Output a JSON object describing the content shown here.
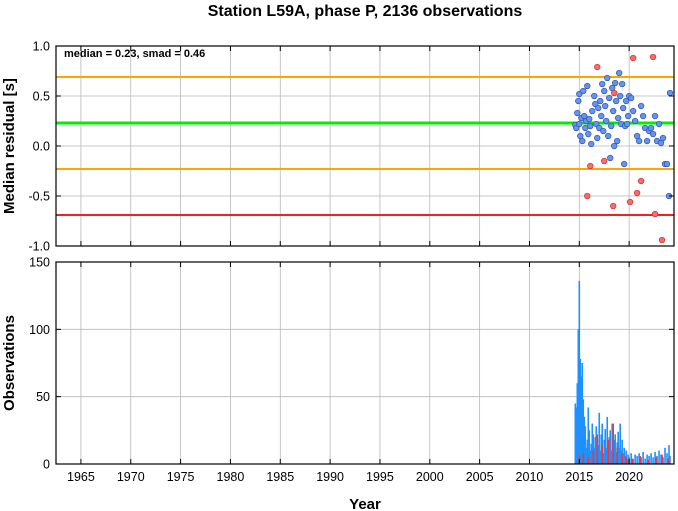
{
  "chart_data": [
    {
      "type": "scatter",
      "title": "Station L59A, phase P, 2136 observations",
      "annotation": "median = 0.23, smad = 0.46",
      "xlabel": "",
      "ylabel": "Median residual [s]",
      "xlim": [
        1962.5,
        2024.5
      ],
      "ylim": [
        -1.0,
        1.0
      ],
      "yticks": [
        "-1.0",
        "-0.5",
        "0.0",
        "0.5",
        "1.0"
      ],
      "grid": true,
      "hlines": [
        {
          "value": 0.69,
          "color": "#ffa500"
        },
        {
          "value": 0.23,
          "color": "#00ee00"
        },
        {
          "value": -0.23,
          "color": "#ffa500"
        },
        {
          "value": -0.69,
          "color": "#ee2222"
        }
      ],
      "series": [
        {
          "color": "#6495ed",
          "points": [
            [
              2014.6,
              0.21
            ],
            [
              2014.7,
              0.18
            ],
            [
              2014.8,
              0.33
            ],
            [
              2014.9,
              0.45
            ],
            [
              2015.0,
              0.52
            ],
            [
              2015.0,
              0.22
            ],
            [
              2015.1,
              0.1
            ],
            [
              2015.2,
              0.28
            ],
            [
              2015.3,
              0.05
            ],
            [
              2015.4,
              0.55
            ],
            [
              2015.5,
              0.3
            ],
            [
              2015.6,
              0.18
            ],
            [
              2015.7,
              0.25
            ],
            [
              2015.8,
              0.6
            ],
            [
              2015.9,
              0.12
            ],
            [
              2016.0,
              0.27
            ],
            [
              2016.1,
              0.2
            ],
            [
              2016.2,
              0.02
            ],
            [
              2016.3,
              0.35
            ],
            [
              2016.5,
              0.5
            ],
            [
              2016.6,
              0.42
            ],
            [
              2016.7,
              0.22
            ],
            [
              2016.8,
              0.08
            ],
            [
              2016.9,
              0.38
            ],
            [
              2017.0,
              0.18
            ],
            [
              2017.1,
              0.45
            ],
            [
              2017.2,
              0.3
            ],
            [
              2017.3,
              0.62
            ],
            [
              2017.4,
              0.15
            ],
            [
              2017.5,
              0.55
            ],
            [
              2017.6,
              0.4
            ],
            [
              2017.7,
              0.25
            ],
            [
              2017.8,
              0.68
            ],
            [
              2017.9,
              0.1
            ],
            [
              2018.0,
              0.48
            ],
            [
              2018.1,
              -0.12
            ],
            [
              2018.2,
              0.2
            ],
            [
              2018.3,
              0.58
            ],
            [
              2018.4,
              0.35
            ],
            [
              2018.5,
              0.0
            ],
            [
              2018.6,
              0.63
            ],
            [
              2018.7,
              0.45
            ],
            [
              2018.8,
              0.05
            ],
            [
              2018.9,
              0.28
            ],
            [
              2019.0,
              0.73
            ],
            [
              2019.1,
              0.5
            ],
            [
              2019.2,
              0.22
            ],
            [
              2019.3,
              0.62
            ],
            [
              2019.4,
              0.38
            ],
            [
              2019.5,
              -0.18
            ],
            [
              2019.6,
              0.2
            ],
            [
              2019.7,
              0.45
            ],
            [
              2019.8,
              0.22
            ],
            [
              2019.9,
              0.3
            ],
            [
              2020.0,
              0.5
            ],
            [
              2020.2,
              0.48
            ],
            [
              2020.4,
              0.35
            ],
            [
              2020.6,
              0.25
            ],
            [
              2020.8,
              0.1
            ],
            [
              2021.0,
              0.05
            ],
            [
              2021.2,
              0.4
            ],
            [
              2021.4,
              0.3
            ],
            [
              2021.6,
              0.18
            ],
            [
              2021.8,
              0.05
            ],
            [
              2022.0,
              0.15
            ],
            [
              2022.2,
              0.18
            ],
            [
              2022.4,
              0.12
            ],
            [
              2022.6,
              0.3
            ],
            [
              2022.8,
              0.05
            ],
            [
              2023.0,
              0.22
            ],
            [
              2023.2,
              0.03
            ],
            [
              2023.4,
              0.08
            ],
            [
              2023.6,
              -0.18
            ],
            [
              2023.8,
              -0.18
            ],
            [
              2024.0,
              -0.5
            ],
            [
              2024.1,
              0.53
            ]
          ]
        },
        {
          "color": "#ff6a6a",
          "points": [
            [
              2015.8,
              -0.5
            ],
            [
              2016.1,
              -0.2
            ],
            [
              2016.8,
              0.79
            ],
            [
              2017.5,
              -0.15
            ],
            [
              2018.4,
              -0.6
            ],
            [
              2018.5,
              0.53
            ],
            [
              2020.1,
              -0.56
            ],
            [
              2020.4,
              0.88
            ],
            [
              2020.8,
              -0.47
            ],
            [
              2021.2,
              -0.35
            ],
            [
              2022.4,
              0.89
            ],
            [
              2022.6,
              -0.68
            ],
            [
              2023.3,
              -0.94
            ]
          ]
        }
      ]
    },
    {
      "type": "bar",
      "title": "",
      "xlabel": "Year",
      "ylabel": "Observations",
      "xlim": [
        1962.5,
        2024.5
      ],
      "ylim": [
        0,
        150
      ],
      "xticks": [
        "1965",
        "1970",
        "1975",
        "1980",
        "1985",
        "1990",
        "1995",
        "2000",
        "2005",
        "2010",
        "2015",
        "2020"
      ],
      "yticks": [
        "0",
        "50",
        "100",
        "150"
      ],
      "grid": true,
      "series": [
        {
          "color": "#1e90ff",
          "bars": [
            [
              2014.6,
              45
            ],
            [
              2014.65,
              10
            ],
            [
              2014.7,
              30
            ],
            [
              2014.75,
              42
            ],
            [
              2014.8,
              60
            ],
            [
              2014.85,
              20
            ],
            [
              2014.9,
              100
            ],
            [
              2014.95,
              50
            ],
            [
              2015.0,
              136
            ],
            [
              2015.05,
              70
            ],
            [
              2015.1,
              78
            ],
            [
              2015.15,
              65
            ],
            [
              2015.2,
              55
            ],
            [
              2015.25,
              40
            ],
            [
              2015.3,
              75
            ],
            [
              2015.35,
              30
            ],
            [
              2015.4,
              48
            ],
            [
              2015.45,
              20
            ],
            [
              2015.5,
              35
            ],
            [
              2015.55,
              15
            ],
            [
              2015.6,
              28
            ],
            [
              2015.7,
              12
            ],
            [
              2015.8,
              18
            ],
            [
              2015.9,
              42
            ],
            [
              2016.0,
              25
            ],
            [
              2016.1,
              10
            ],
            [
              2016.2,
              15
            ],
            [
              2016.3,
              30
            ],
            [
              2016.4,
              22
            ],
            [
              2016.5,
              12
            ],
            [
              2016.6,
              20
            ],
            [
              2016.7,
              28
            ],
            [
              2016.8,
              18
            ],
            [
              2016.9,
              14
            ],
            [
              2017.0,
              38
            ],
            [
              2017.1,
              10
            ],
            [
              2017.2,
              22
            ],
            [
              2017.3,
              30
            ],
            [
              2017.4,
              8
            ],
            [
              2017.5,
              18
            ],
            [
              2017.6,
              26
            ],
            [
              2017.7,
              12
            ],
            [
              2017.8,
              35
            ],
            [
              2017.9,
              15
            ],
            [
              2018.0,
              20
            ],
            [
              2018.1,
              25
            ],
            [
              2018.2,
              10
            ],
            [
              2018.3,
              30
            ],
            [
              2018.4,
              14
            ],
            [
              2018.5,
              18
            ],
            [
              2018.6,
              22
            ],
            [
              2018.7,
              9
            ],
            [
              2018.8,
              16
            ],
            [
              2018.9,
              24
            ],
            [
              2019.0,
              12
            ],
            [
              2019.1,
              30
            ],
            [
              2019.2,
              10
            ],
            [
              2019.3,
              18
            ],
            [
              2019.4,
              8
            ],
            [
              2019.5,
              12
            ],
            [
              2019.6,
              6
            ],
            [
              2019.7,
              10
            ],
            [
              2019.8,
              4
            ],
            [
              2019.9,
              7
            ],
            [
              2020.0,
              5
            ],
            [
              2020.2,
              8
            ],
            [
              2020.4,
              4
            ],
            [
              2020.6,
              7
            ],
            [
              2020.8,
              6
            ],
            [
              2021.0,
              8
            ],
            [
              2021.2,
              5
            ],
            [
              2021.4,
              9
            ],
            [
              2021.6,
              4
            ],
            [
              2021.8,
              7
            ],
            [
              2022.0,
              6
            ],
            [
              2022.2,
              8
            ],
            [
              2022.4,
              5
            ],
            [
              2022.6,
              9
            ],
            [
              2022.8,
              6
            ],
            [
              2023.0,
              10
            ],
            [
              2023.2,
              7
            ],
            [
              2023.4,
              5
            ],
            [
              2023.6,
              12
            ],
            [
              2023.8,
              8
            ],
            [
              2024.0,
              14
            ],
            [
              2024.1,
              6
            ]
          ]
        },
        {
          "color": "#ff3030",
          "bars": [
            [
              2015.0,
              6
            ],
            [
              2015.4,
              8
            ],
            [
              2015.9,
              5
            ],
            [
              2016.4,
              10
            ],
            [
              2016.8,
              22
            ],
            [
              2017.3,
              14
            ],
            [
              2017.9,
              18
            ],
            [
              2018.4,
              30
            ],
            [
              2018.8,
              12
            ],
            [
              2019.3,
              8
            ],
            [
              2019.7,
              5
            ],
            [
              2020.3,
              4
            ],
            [
              2021.1,
              6
            ],
            [
              2021.9,
              3
            ],
            [
              2022.7,
              5
            ],
            [
              2023.3,
              7
            ],
            [
              2023.9,
              4
            ]
          ]
        }
      ]
    }
  ]
}
